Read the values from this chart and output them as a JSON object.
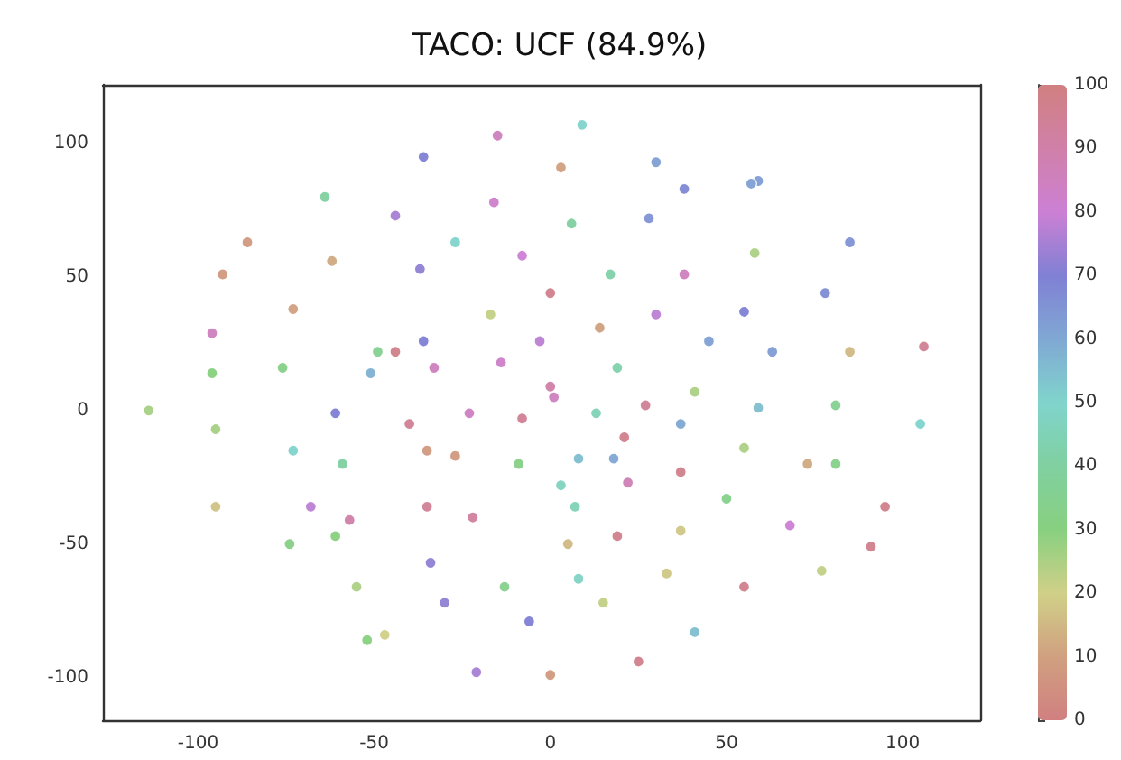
{
  "chart_data": {
    "type": "scatter",
    "title": "TACO: UCF (84.9%)",
    "x": [
      -15,
      -36,
      9,
      3,
      30,
      38,
      59,
      -64,
      -44,
      -86,
      -93,
      -62,
      -27,
      -37,
      -16,
      -8,
      0,
      -17,
      -73,
      -96,
      -96,
      -76,
      -49,
      -44,
      -51,
      -33,
      -36,
      -14,
      -3,
      0,
      28,
      57,
      6,
      58,
      85,
      17,
      38,
      78,
      14,
      30,
      55,
      45,
      63,
      85,
      106,
      19,
      41,
      -114,
      -95,
      -61,
      -73,
      -59,
      -40,
      -23,
      -8,
      -35,
      -27,
      -9,
      -95,
      -68,
      -57,
      -35,
      -22,
      -74,
      -61,
      -34,
      -55,
      -30,
      -13,
      -6,
      -52,
      -47,
      -21,
      0,
      1,
      13,
      27,
      37,
      59,
      81,
      105,
      21,
      18,
      8,
      22,
      37,
      55,
      73,
      81,
      50,
      7,
      95,
      68,
      19,
      37,
      5,
      91,
      33,
      77,
      8,
      55,
      15,
      41,
      25,
      3
    ],
    "values": [
      103,
      95,
      107,
      91,
      93,
      83,
      86,
      80,
      73,
      63,
      51,
      56,
      63,
      53,
      78,
      58,
      44,
      36,
      38,
      29,
      14,
      16,
      22,
      22,
      14,
      16,
      26,
      18,
      26,
      9,
      72,
      85,
      70,
      59,
      63,
      51,
      51,
      44,
      31,
      36,
      37,
      26,
      22,
      22,
      24,
      16,
      7,
      0,
      -7,
      -1,
      -15,
      -20,
      -5,
      -1,
      -3,
      -15,
      -17,
      -20,
      -36,
      -36,
      -41,
      -36,
      -40,
      -50,
      -47,
      -57,
      -66,
      -72,
      -66,
      -79,
      -86,
      -84,
      -98,
      -99,
      5,
      -1,
      2,
      -5,
      1,
      2,
      -5,
      -10,
      -18,
      -18,
      -27,
      -23,
      -14,
      -20,
      -20,
      -33,
      -36,
      -36,
      -43,
      -47,
      -45,
      -50,
      -51,
      -61,
      -60,
      -63,
      -66,
      -72,
      -83,
      -94,
      -28
    ],
    "cvalues": [
      85,
      70,
      50,
      10,
      62,
      68,
      63,
      40,
      75,
      8,
      8,
      12,
      50,
      72,
      82,
      80,
      97,
      22,
      10,
      85,
      30,
      32,
      35,
      98,
      58,
      85,
      70,
      83,
      78,
      90,
      65,
      62,
      40,
      25,
      65,
      42,
      85,
      67,
      10,
      78,
      70,
      62,
      63,
      15,
      95,
      43,
      25,
      26,
      26,
      70,
      50,
      40,
      95,
      84,
      95,
      8,
      8,
      32,
      17,
      78,
      90,
      95,
      93,
      32,
      30,
      72,
      25,
      72,
      34,
      70,
      30,
      20,
      75,
      8,
      85,
      45,
      95,
      60,
      55,
      35,
      50,
      97,
      60,
      55,
      87,
      97,
      25,
      12,
      33,
      33,
      45,
      97,
      80,
      97,
      18,
      15,
      97,
      18,
      22,
      48,
      97,
      22,
      55,
      97,
      47
    ],
    "xlim": [
      -127,
      122
    ],
    "ylim": [
      -116,
      122
    ],
    "xticks": [
      -100,
      -50,
      0,
      50,
      100
    ],
    "yticks": [
      -100,
      -50,
      0,
      50,
      100
    ],
    "clim": [
      0,
      100
    ],
    "cticks": [
      0,
      10,
      20,
      30,
      40,
      50,
      60,
      70,
      80,
      90,
      100
    ],
    "marker": "circle",
    "grid": false
  }
}
